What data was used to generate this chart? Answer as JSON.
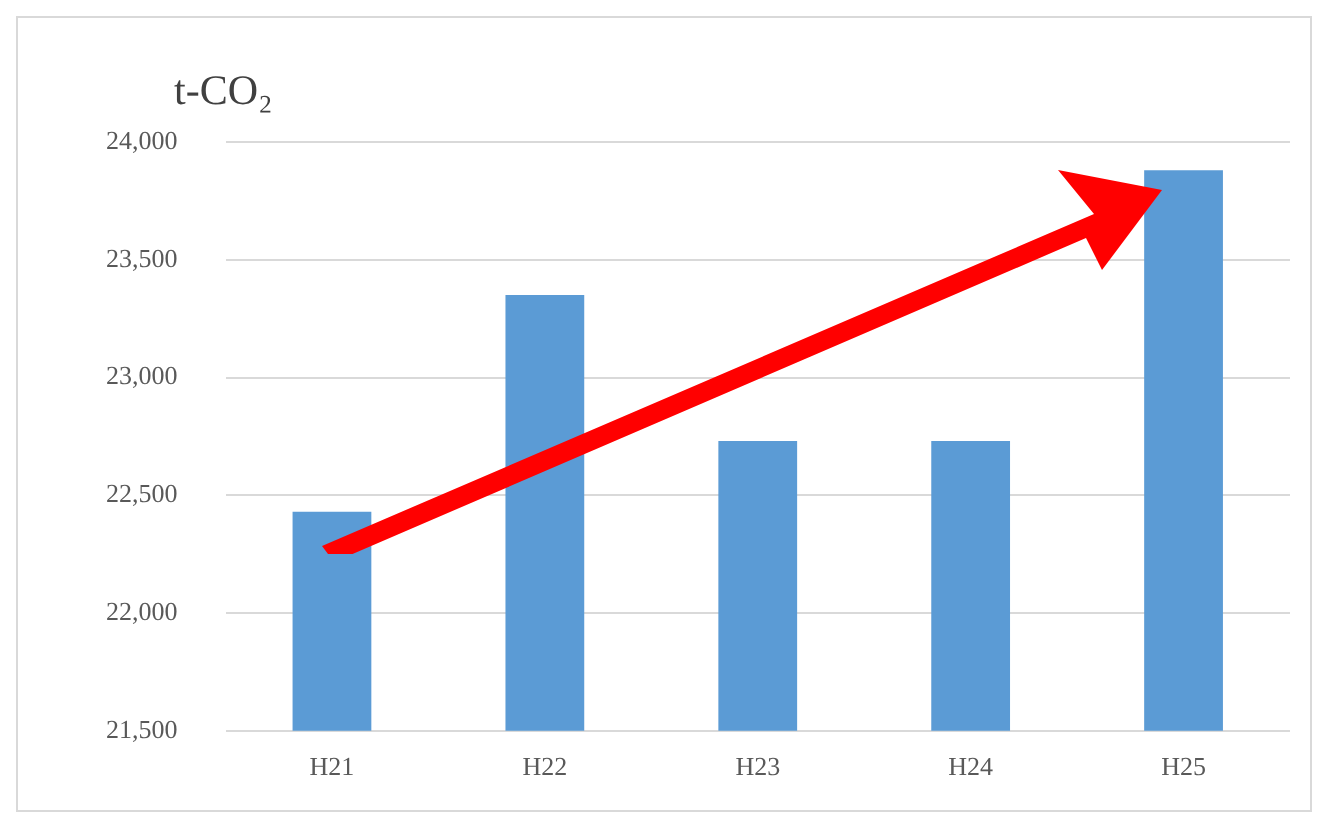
{
  "chart_data": {
    "type": "bar",
    "ylabel": "t-CO₂",
    "categories": [
      "H21",
      "H22",
      "H23",
      "H24",
      "H25"
    ],
    "values": [
      22430,
      23350,
      22730,
      22730,
      23880
    ],
    "color": "#5b9bd5",
    "ylim": [
      21500,
      24000
    ],
    "yticks": [
      {
        "value": 21500,
        "label": "21,500"
      },
      {
        "value": 22000,
        "label": "22,000"
      },
      {
        "value": 22500,
        "label": "22,500"
      },
      {
        "value": 23000,
        "label": "23,000"
      },
      {
        "value": 23500,
        "label": "23,500"
      },
      {
        "value": 24000,
        "label": "24,000"
      }
    ],
    "grid": "y"
  }
}
